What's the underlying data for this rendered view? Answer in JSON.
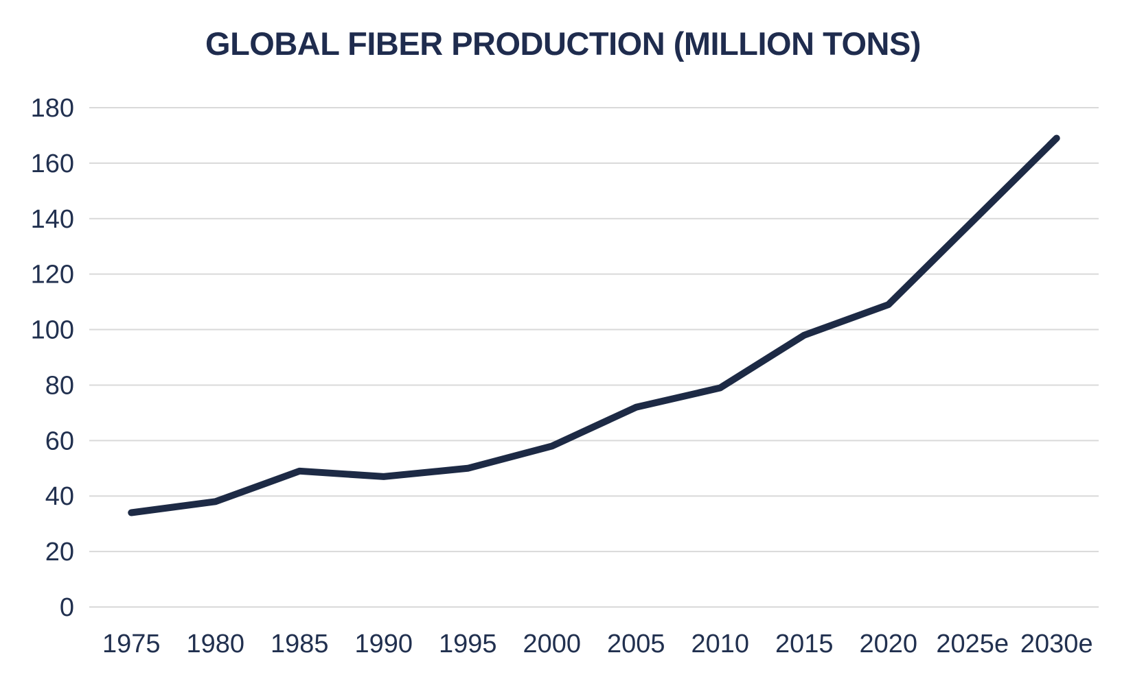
{
  "chart_data": {
    "type": "line",
    "title": "GLOBAL FIBER PRODUCTION (MILLION TONS)",
    "categories": [
      "1975",
      "1980",
      "1985",
      "1990",
      "1995",
      "2000",
      "2005",
      "2010",
      "2015",
      "2020",
      "2025e",
      "2030e"
    ],
    "values": [
      34,
      38,
      49,
      47,
      50,
      58,
      72,
      79,
      98,
      109,
      139,
      169
    ],
    "series_name": "Global fiber production (million tons)",
    "xlabel": "",
    "ylabel": "",
    "ylim": [
      0,
      180
    ],
    "ytick_step": 20,
    "ytick_labels": [
      "0",
      "20",
      "40",
      "60",
      "80",
      "100",
      "120",
      "140",
      "160",
      "180"
    ],
    "grid": "horizontal",
    "legend_position": "none",
    "line_color": "#1d2a45",
    "line_width": 10,
    "grid_color": "#d9d9d9",
    "text_color": "#21304f",
    "title_color": "#1f2c4e",
    "background_color": "#ffffff"
  }
}
